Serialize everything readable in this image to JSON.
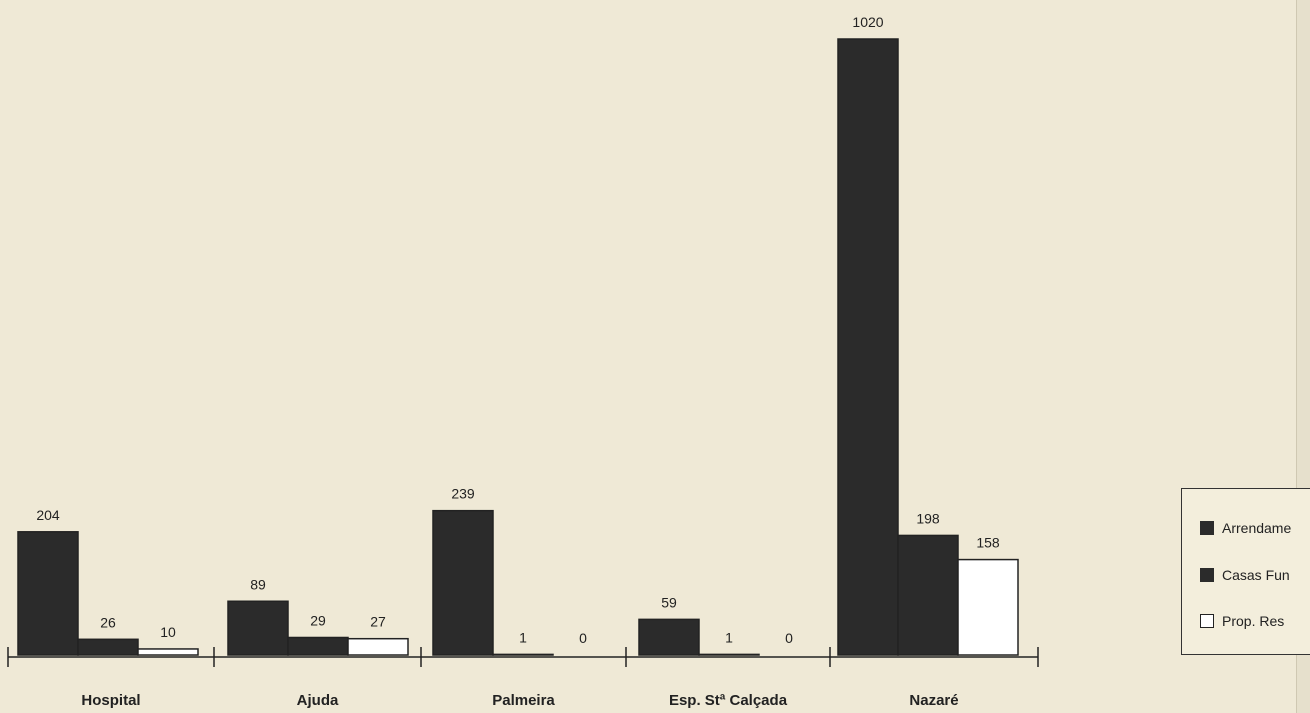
{
  "chart_data": {
    "type": "bar",
    "categories": [
      "Hospital",
      "Ajuda",
      "Palmeira",
      "Esp. Stª Calçada",
      "Nazaré"
    ],
    "series": [
      {
        "name": "Arrendame",
        "color": "#2b2b2b",
        "values": [
          204,
          89,
          239,
          59,
          1020
        ]
      },
      {
        "name": "Casas Fun",
        "color": "#2b2b2b",
        "values": [
          26,
          29,
          1,
          1,
          198
        ]
      },
      {
        "name": "Prop. Res",
        "color": "#ffffff",
        "values": [
          10,
          27,
          0,
          0,
          158
        ]
      }
    ],
    "data_labels": [
      [
        "204",
        "26",
        "10"
      ],
      [
        "89",
        "29",
        "27"
      ],
      [
        "239",
        "1",
        "0"
      ],
      [
        "59",
        "1",
        "0"
      ],
      [
        "1020",
        "198",
        "158"
      ]
    ],
    "ylim": [
      0,
      1020
    ],
    "legend_position": "right"
  },
  "legend": {
    "items": [
      "Arrendame",
      "Casas Fun",
      "Prop. Res"
    ]
  }
}
